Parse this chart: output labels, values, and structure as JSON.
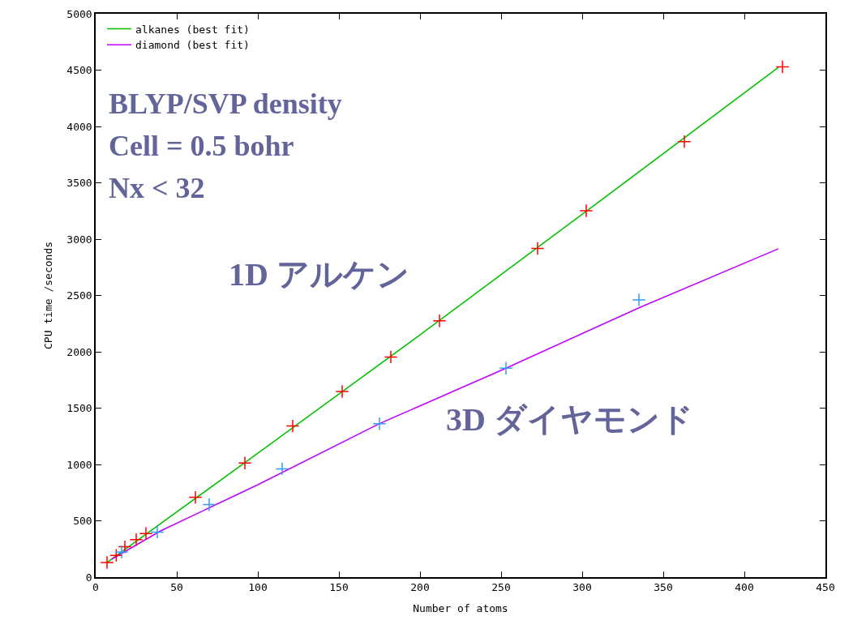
{
  "chart_data": {
    "type": "scatter",
    "xlabel": "Number of atoms",
    "ylabel": "CPU time /seconds",
    "xlim": [
      0,
      450
    ],
    "xticks": [
      0,
      50,
      100,
      150,
      200,
      250,
      300,
      350,
      400,
      450
    ],
    "ylim": [
      0,
      5000
    ],
    "yticks": [
      0,
      500,
      1000,
      1500,
      2000,
      2500,
      3000,
      3500,
      4000,
      4500,
      5000
    ],
    "legend": "top left",
    "series": [
      {
        "type": "line",
        "name": "alkanes (best fit)",
        "color": "#00c000",
        "marker": "none",
        "x": [
          7,
          100,
          200,
          300,
          421
        ],
        "values": [
          130,
          1100,
          2150,
          3220,
          4525
        ]
      },
      {
        "type": "line",
        "name": "diamond (best fit)",
        "color": "#c000ff",
        "marker": "none",
        "x": [
          10,
          40,
          100,
          175,
          253,
          335,
          421
        ],
        "values": [
          160,
          410,
          820,
          1362,
          1854,
          2390,
          2915
        ]
      },
      {
        "color": "#ff0000",
        "marker": "cross",
        "x": [
          7,
          12.7,
          18,
          25,
          31,
          61.5,
          92,
          121.5,
          152,
          182,
          212,
          272.5,
          302.5,
          363,
          423.5
        ],
        "values": [
          130,
          193,
          269,
          333,
          387,
          708,
          1013,
          1341,
          1648,
          1954,
          2275,
          2917,
          3252,
          3866,
          4529
        ]
      },
      {
        "color": "#3399ff",
        "marker": "cross",
        "x": [
          16,
          38,
          70,
          115,
          175,
          253,
          335
        ],
        "values": [
          223,
          400,
          644,
          961,
          1362,
          1854,
          2461
        ]
      }
    ],
    "annotations": [
      "BLYP/SVP density",
      "Cell = 0.5 bohr",
      "Nx < 32",
      "1D アルケン",
      "3D ダイヤモンド"
    ]
  }
}
